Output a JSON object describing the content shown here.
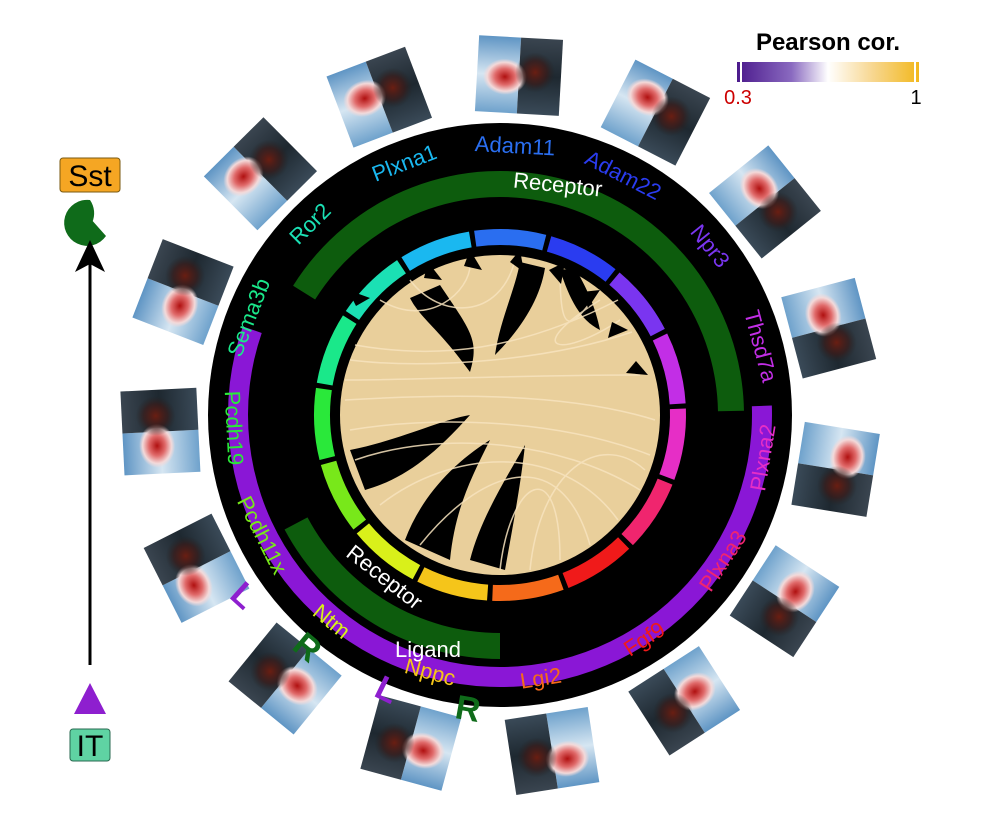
{
  "legend": {
    "title": "Pearson cor.",
    "min_label": "0.3",
    "max_label": "1",
    "colors": [
      "#4b1a8c",
      "#8a6ac0",
      "#ffffff",
      "#f7d68e",
      "#f2b81e"
    ],
    "min_color": "#cc0000"
  },
  "side": {
    "top_label": "Sst",
    "top_color": "#f5a623",
    "top_symbol_color": "#0f6b1a",
    "bottom_label": "IT",
    "bottom_color": "#5fd3a3",
    "bottom_symbol_color": "#8e1fcf"
  },
  "arcs": {
    "receptor_top": "Receptor",
    "receptor_bottom": "Receptor",
    "ligand": "Ligand",
    "receptor_color": "#0d5c0d",
    "ligand_color": "#8a17d6"
  },
  "genes": [
    {
      "name": "Ror2",
      "color": "#1be0b4"
    },
    {
      "name": "Plxna1",
      "color": "#1ab8f0"
    },
    {
      "name": "Adam11",
      "color": "#2a6ef0"
    },
    {
      "name": "Adam22",
      "color": "#2a3cf0"
    },
    {
      "name": "Npr3",
      "color": "#7a35f0"
    },
    {
      "name": "Thsd7a",
      "color": "#c22ee6"
    },
    {
      "name": "Plxna2",
      "color": "#e62ec6"
    },
    {
      "name": "Plxna3",
      "color": "#f0256e"
    },
    {
      "name": "Fgf9",
      "color": "#f01a1a"
    },
    {
      "name": "Lgi2",
      "color": "#f56a1a"
    },
    {
      "name": "Nppc",
      "color": "#f5c51a"
    },
    {
      "name": "Ntm",
      "color": "#d9f01a"
    },
    {
      "name": "Pcdh11x",
      "color": "#78e81a"
    },
    {
      "name": "Pcdh19",
      "color": "#2ae83a"
    },
    {
      "name": "Sema3b",
      "color": "#1ae88a"
    }
  ],
  "lr_marks": [
    {
      "text": "L",
      "color": "#8e1fcf"
    },
    {
      "text": "R",
      "color": "#0f6b1a"
    },
    {
      "text": "L",
      "color": "#8e1fcf"
    },
    {
      "text": "R",
      "color": "#0f6b1a"
    }
  ]
}
